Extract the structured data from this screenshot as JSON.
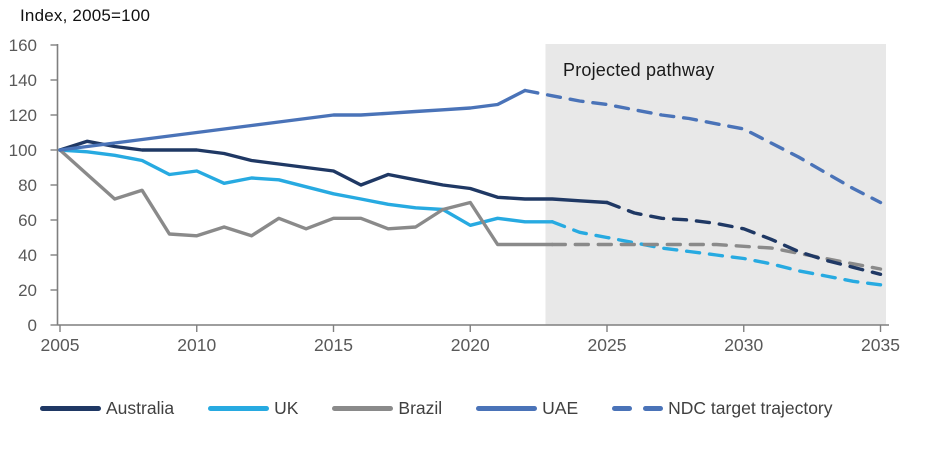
{
  "chart_data": {
    "type": "line",
    "title": "Index, 2005=100",
    "annotation": "Projected pathway",
    "grid": false,
    "x_axis": {
      "ticks": [
        2005,
        2010,
        2015,
        2020,
        2025,
        2030,
        2035
      ],
      "lim": [
        2005,
        2035.2
      ]
    },
    "y_axis": {
      "ticks": [
        0,
        20,
        40,
        60,
        80,
        100,
        120,
        140,
        160
      ],
      "lim": [
        0,
        160
      ]
    },
    "projection_region": {
      "from": 2022.75,
      "to": 2035.2,
      "fill": "#E8E8E8"
    },
    "colors": {
      "australia": "#1F3864",
      "uk": "#27AAE1",
      "brazil": "#8A8A8A",
      "uae": "#4A73B8"
    },
    "series": [
      {
        "id": "uk",
        "name": "UK",
        "color": "#27AAE1",
        "style": "solid",
        "x": [
          2005,
          2006,
          2007,
          2008,
          2009,
          2010,
          2011,
          2012,
          2013,
          2014,
          2015,
          2016,
          2017,
          2018,
          2019,
          2020,
          2021,
          2022,
          2023
        ],
        "values": [
          100,
          99,
          97,
          94,
          86,
          88,
          81,
          84,
          83,
          79,
          75,
          72,
          69,
          67,
          66,
          57,
          61,
          59,
          59
        ]
      },
      {
        "id": "brazil",
        "name": "Brazil",
        "color": "#8A8A8A",
        "style": "solid",
        "x": [
          2005,
          2006,
          2007,
          2008,
          2009,
          2010,
          2011,
          2012,
          2013,
          2014,
          2015,
          2016,
          2017,
          2018,
          2019,
          2020,
          2021,
          2022,
          2023
        ],
        "values": [
          100,
          86,
          72,
          77,
          52,
          51,
          56,
          51,
          61,
          55,
          61,
          61,
          55,
          56,
          66,
          70,
          46,
          46,
          46
        ]
      },
      {
        "id": "australia",
        "name": "Australia",
        "color": "#1F3864",
        "style": "solid",
        "x": [
          2005,
          2006,
          2007,
          2008,
          2009,
          2010,
          2011,
          2012,
          2013,
          2014,
          2015,
          2016,
          2017,
          2018,
          2019,
          2020,
          2021,
          2022,
          2023,
          2024,
          2025
        ],
        "values": [
          100,
          105,
          102,
          100,
          100,
          100,
          98,
          94,
          92,
          90,
          88,
          80,
          86,
          83,
          80,
          78,
          73,
          72,
          72,
          71,
          70
        ]
      },
      {
        "id": "uae",
        "name": "UAE",
        "color": "#4A73B8",
        "style": "solid",
        "x": [
          2005,
          2006,
          2007,
          2008,
          2009,
          2010,
          2011,
          2012,
          2013,
          2014,
          2015,
          2016,
          2017,
          2018,
          2019,
          2020,
          2021,
          2022
        ],
        "values": [
          100,
          102,
          104,
          106,
          108,
          110,
          112,
          114,
          116,
          118,
          120,
          120,
          121,
          122,
          123,
          124,
          126,
          134
        ]
      },
      {
        "id": "uk-ndc",
        "name": "UK NDC target trajectory",
        "color": "#27AAE1",
        "style": "dashed",
        "x": [
          2023,
          2024,
          2025,
          2026,
          2027,
          2028,
          2029,
          2030,
          2031,
          2032,
          2033,
          2034,
          2035
        ],
        "values": [
          59,
          53,
          50,
          47,
          44,
          42,
          40,
          38,
          35,
          31,
          28,
          25,
          23
        ]
      },
      {
        "id": "brazil-ndc",
        "name": "Brazil NDC target trajectory",
        "color": "#8A8A8A",
        "style": "dashed",
        "x": [
          2023,
          2024,
          2025,
          2026,
          2027,
          2028,
          2029,
          2030,
          2031,
          2032,
          2033,
          2034,
          2035
        ],
        "values": [
          46,
          46,
          46,
          46,
          46,
          46,
          46,
          45,
          44,
          41,
          38,
          35,
          32
        ]
      },
      {
        "id": "australia-ndc",
        "name": "Australia NDC target trajectory",
        "color": "#1F3864",
        "style": "dashed",
        "x": [
          2025,
          2026,
          2027,
          2028,
          2029,
          2030,
          2031,
          2032,
          2033,
          2034,
          2035
        ],
        "values": [
          70,
          64,
          61,
          60,
          58,
          55,
          49,
          42,
          37,
          33,
          29
        ]
      },
      {
        "id": "uae-ndc",
        "name": "UAE NDC target trajectory",
        "color": "#4A73B8",
        "style": "dashed",
        "x": [
          2022,
          2023,
          2024,
          2025,
          2026,
          2027,
          2028,
          2029,
          2030,
          2031,
          2032,
          2033,
          2034,
          2035
        ],
        "values": [
          134,
          131,
          128,
          126,
          123,
          120,
          118,
          115,
          112,
          104,
          96,
          87,
          78,
          70
        ]
      }
    ],
    "legend": {
      "position": "bottom",
      "items": [
        {
          "label": "Australia",
          "color": "#1F3864",
          "style": "solid"
        },
        {
          "label": "UK",
          "color": "#27AAE1",
          "style": "solid"
        },
        {
          "label": "Brazil",
          "color": "#8A8A8A",
          "style": "solid"
        },
        {
          "label": "UAE",
          "color": "#4A73B8",
          "style": "solid"
        },
        {
          "label": "NDC target trajectory",
          "color": "#4A73B8",
          "style": "dashed"
        }
      ]
    }
  }
}
